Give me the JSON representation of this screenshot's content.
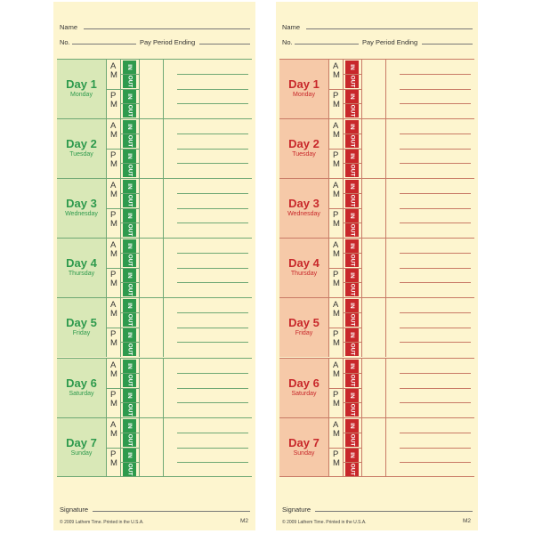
{
  "labels": {
    "name": "Name",
    "no": "No.",
    "pay_period": "Pay Period Ending",
    "am_a": "A",
    "am_m": "M",
    "pm_p": "P",
    "pm_m": "M",
    "in": "IN",
    "out": "OUT",
    "signature": "Signature",
    "footer": "© 2009 Lathem Time.  Printed in the U.S.A.",
    "code": "M2"
  },
  "days": [
    {
      "title": "Day 1",
      "weekday": "Monday"
    },
    {
      "title": "Day 2",
      "weekday": "Tuesday"
    },
    {
      "title": "Day 3",
      "weekday": "Wednesday"
    },
    {
      "title": "Day 4",
      "weekday": "Thursday"
    },
    {
      "title": "Day 5",
      "weekday": "Friday"
    },
    {
      "title": "Day 6",
      "weekday": "Saturday"
    },
    {
      "title": "Day 7",
      "weekday": "Sunday"
    }
  ],
  "cards": [
    {
      "id": "green",
      "accent": "#2e9a4d",
      "tint": "#d9e8b7"
    },
    {
      "id": "red",
      "accent": "#c8282b",
      "tint": "#f6c9a8"
    }
  ]
}
